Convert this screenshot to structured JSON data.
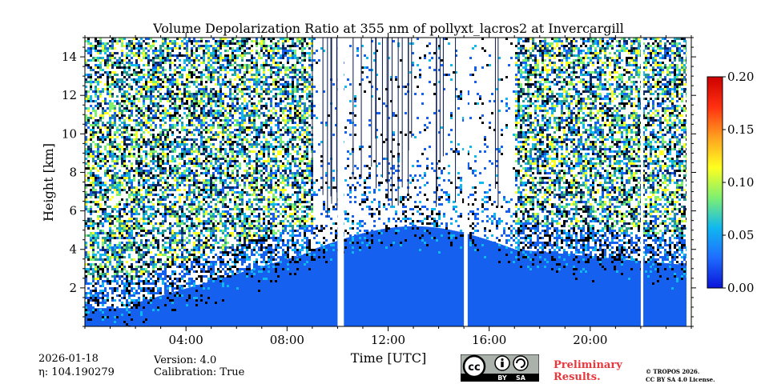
{
  "chart_data": {
    "type": "heatmap",
    "title": "Volume Depolarization Ratio at 355 nm of pollyxt_lacros2 at Invercargill",
    "xlabel": "Time [UTC]",
    "ylabel": "Height [km]",
    "xlim": [
      0,
      24
    ],
    "ylim": [
      0,
      15
    ],
    "x_ticks": [
      4,
      8,
      12,
      16,
      20
    ],
    "x_tick_labels": [
      "04:00",
      "08:00",
      "12:00",
      "16:00",
      "20:00"
    ],
    "y_ticks": [
      2,
      4,
      6,
      8,
      10,
      12,
      14
    ],
    "y_tick_labels": [
      "2",
      "4",
      "6",
      "8",
      "10",
      "12",
      "14"
    ],
    "colorbar": {
      "range": [
        0.0,
        0.2
      ],
      "ticks": [
        0.0,
        0.05,
        0.1,
        0.15,
        0.2
      ],
      "tick_labels": [
        "0.00",
        "0.05",
        "0.10",
        "0.15",
        "0.20"
      ],
      "colormap": [
        "#0a14d8",
        "#1f6cff",
        "#10b8f0",
        "#7ff070",
        "#ffff20",
        "#ffa020",
        "#ff3010",
        "#cc0000"
      ]
    },
    "data_gaps_hours": [
      [
        10.0,
        10.25
      ],
      [
        15.0,
        15.15
      ],
      [
        22.0,
        22.1
      ]
    ],
    "data_end_hours": 24,
    "description_bands": [
      {
        "x_range": [
          0,
          9
        ],
        "low_layer_top_km": 3.8,
        "noisy_above": true
      },
      {
        "x_range": [
          9,
          17
        ],
        "low_layer_top_km": 5.5,
        "noisy_above": "sparse"
      },
      {
        "x_range": [
          17,
          24
        ],
        "low_layer_top_km": 3.8,
        "noisy_above": true
      }
    ]
  },
  "footer": {
    "date": "2026-01-18",
    "eta": "η: 104.190279",
    "version": "Version: 4.0",
    "calibration": "Calibration: True",
    "preliminary_line1": "Preliminary",
    "preliminary_line2": "Results.",
    "copyright_line1": "© TROPOS 2026.",
    "copyright_line2": "CC BY SA 4.0 License.",
    "cc_labels": [
      "cc",
      "BY",
      "SA"
    ]
  },
  "colors": {
    "plot_background": "#ffffff",
    "low_layer": "#1660f0",
    "preliminary": "#e8383d"
  }
}
